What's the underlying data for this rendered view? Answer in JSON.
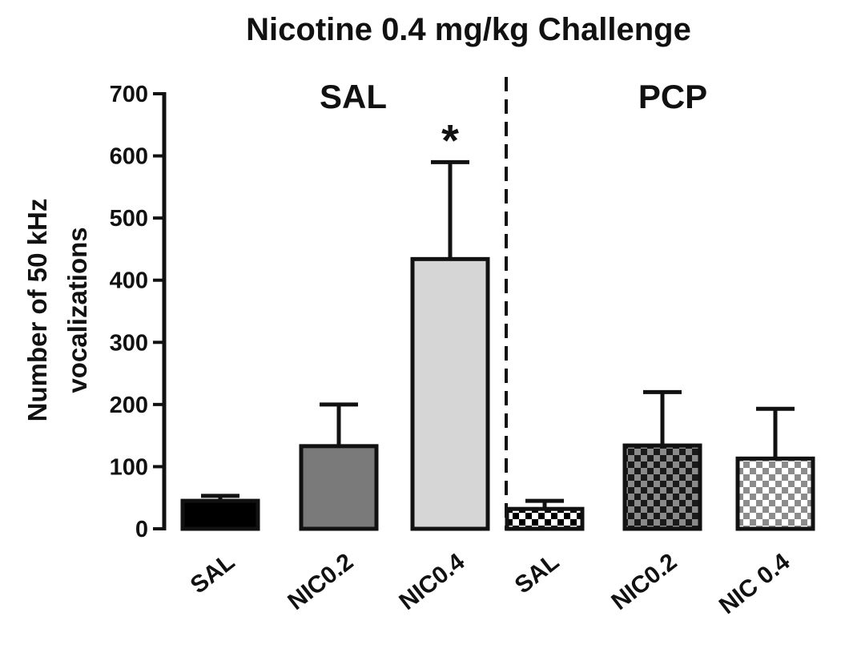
{
  "chart_data": {
    "type": "bar",
    "title": "Nicotine 0.4 mg/kg Challenge",
    "ylabel_lines": [
      "Number of 50 kHz",
      "vocalizations"
    ],
    "xlabel": "",
    "ylim": [
      0,
      700
    ],
    "yticks": [
      0,
      100,
      200,
      300,
      400,
      500,
      600,
      700
    ],
    "grid": false,
    "groups": [
      {
        "label": "SAL",
        "categories": [
          0,
          1,
          2
        ]
      },
      {
        "label": "PCP",
        "categories": [
          3,
          4,
          5
        ]
      }
    ],
    "categories": [
      "SAL",
      "NIC0.2",
      "NIC0.4",
      "SAL",
      "NIC0.2",
      "NIC 0.4"
    ],
    "values": [
      45,
      133,
      434,
      32,
      134,
      113
    ],
    "errors": [
      8,
      67,
      156,
      13,
      86,
      80
    ],
    "significance": [
      "",
      "",
      "*",
      "",
      "",
      ""
    ],
    "fills": [
      "solid-black",
      "solid-gray",
      "solid-lightgray",
      "checker-fine-white",
      "checker-dark",
      "checker-light"
    ],
    "colors": {
      "black": "#000000",
      "gray": "#7a7a7a",
      "lightgray": "#d6d6d6",
      "checker_dark": "#5a5a5a",
      "checker_light": "#c9c9c9"
    }
  }
}
